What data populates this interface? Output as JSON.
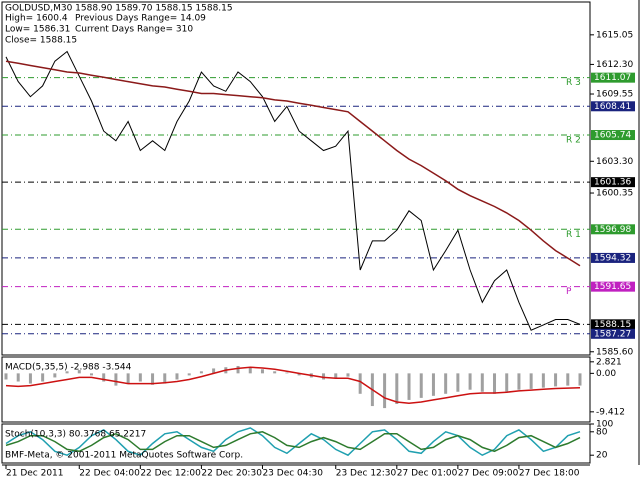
{
  "chart_data": [
    {
      "type": "line",
      "title": "GOLDUSD,M30  1588.90 1589.70 1588.15 1588.15",
      "info": [
        "High= 1600.4",
        "Previous Days Range= 14.09",
        "Low= 1586.31",
        "Current Days Range= 310",
        "Close= 1588.15"
      ],
      "categories": [
        "21 Dec 2011",
        null,
        null,
        null,
        null,
        null,
        "22 Dec 04:00",
        null,
        null,
        null,
        null,
        "22 Dec 12:00",
        null,
        null,
        null,
        null,
        "22 Dec 20:30",
        null,
        null,
        null,
        null,
        "23 Dec 04:30",
        null,
        null,
        null,
        null,
        null,
        "23 Dec 12:30",
        null,
        null,
        null,
        null,
        "27 Dec 01:00",
        null,
        null,
        null,
        null,
        "27 Dec 09:00",
        null,
        null,
        null,
        null,
        "27 Dec 18:00",
        null,
        null,
        null,
        null,
        null
      ],
      "series": [
        {
          "color": "#000000",
          "values": [
            1613.0,
            1610.7,
            1609.3,
            1610.3,
            1612.6,
            1613.5,
            1611.2,
            1608.9,
            1606.1,
            1605.2,
            1607.0,
            1604.3,
            1605.2,
            1604.3,
            1607.0,
            1608.9,
            1611.6,
            1610.3,
            1609.8,
            1611.6,
            1610.7,
            1609.3,
            1607.0,
            1608.4,
            1606.1,
            1605.2,
            1604.3,
            1604.7,
            1606.1,
            1593.2,
            1595.9,
            1595.9,
            1596.9,
            1598.7,
            1597.8,
            1593.2,
            1595.0,
            1596.9,
            1593.2,
            1590.2,
            1592.2,
            1593.2,
            1590.2,
            1587.6,
            1588.1,
            1588.6,
            1588.6,
            1588.15
          ]
        },
        {
          "color": "#8b1a1a",
          "values": [
            1612.6,
            1612.4,
            1612.2,
            1612.0,
            1611.8,
            1611.6,
            1611.5,
            1611.3,
            1611.1,
            1610.9,
            1610.7,
            1610.5,
            1610.3,
            1610.2,
            1610.0,
            1609.8,
            1609.6,
            1609.6,
            1609.5,
            1609.4,
            1609.3,
            1609.2,
            1609.0,
            1608.9,
            1608.7,
            1608.5,
            1608.3,
            1608.1,
            1607.9,
            1607.0,
            1606.1,
            1605.2,
            1604.3,
            1603.5,
            1602.9,
            1602.2,
            1601.5,
            1600.7,
            1600.1,
            1599.6,
            1599.1,
            1598.5,
            1597.8,
            1596.9,
            1595.9,
            1595.0,
            1594.3,
            1593.6
          ]
        }
      ],
      "levels": [
        {
          "value": 1611.07,
          "color": "#2e9b2e",
          "name": "R 3"
        },
        {
          "value": 1608.41,
          "color": "#1a237e"
        },
        {
          "value": 1605.74,
          "color": "#2e9b2e",
          "name": "R 2"
        },
        {
          "value": 1601.36,
          "color": "#000000"
        },
        {
          "value": 1596.98,
          "color": "#2e9b2e",
          "name": "R 1"
        },
        {
          "value": 1594.32,
          "color": "#1a237e"
        },
        {
          "value": 1591.65,
          "color": "#c020c0",
          "name": "P"
        },
        {
          "value": 1588.15,
          "color": "#000000"
        },
        {
          "value": 1587.27,
          "color": "#1a237e"
        }
      ],
      "ylim": [
        1585.3,
        1618.1
      ],
      "yticks": [
        1615.05,
        {
          "value": 1612.3,
          "label": "1612.30"
        },
        1609.55,
        {
          "value": 1603.3,
          "label": "1603.30"
        },
        1600.35,
        {
          "value": 1585.6,
          "label": "1585.60"
        }
      ]
    },
    {
      "type": "macd",
      "title": "MACD(5,35,5) -2.988 -3.544",
      "series": [
        {
          "color": "#a0a0a0",
          "values": [
            -1.5,
            -2,
            -2.5,
            -2,
            -1,
            0.5,
            0.8,
            -0.5,
            -2,
            -3,
            -2.5,
            -2,
            -2.8,
            -2.5,
            -1.5,
            -0.5,
            0.5,
            1.2,
            1.5,
            1.8,
            1.5,
            1,
            0.5,
            0.2,
            -0.5,
            -1,
            -1.5,
            -1.2,
            -0.8,
            -5,
            -8,
            -8.5,
            -7.5,
            -6.5,
            -6,
            -5.5,
            -5,
            -4.5,
            -4,
            -4.5,
            -5,
            -4.5,
            -4,
            -3.8,
            -3.5,
            -3.2,
            -3,
            -2.988
          ]
        },
        {
          "color": "#cc1111",
          "values": [
            -3,
            -3.2,
            -3,
            -2.5,
            -2,
            -1.5,
            -1,
            -1,
            -1.5,
            -2,
            -2.5,
            -2.5,
            -2.5,
            -2.3,
            -2,
            -1.5,
            -0.8,
            0,
            0.8,
            1.2,
            1.5,
            1.3,
            1,
            0.5,
            0,
            -0.5,
            -1,
            -1.2,
            -1.2,
            -2,
            -4,
            -6,
            -7,
            -7.3,
            -7,
            -6.5,
            -6,
            -5.5,
            -5,
            -4.8,
            -4.8,
            -4.6,
            -4.3,
            -4.1,
            -3.9,
            -3.7,
            -3.6,
            -3.544
          ]
        }
      ],
      "ylim": [
        -11.9,
        4.0
      ],
      "yticks": [
        2.821,
        {
          "value": 0,
          "label": "0.00"
        },
        -9.412
      ]
    },
    {
      "type": "stoch",
      "title": "Stoch(10,3,3) 80.3768 65.2217",
      "series": [
        {
          "color": "#20a0b0",
          "values": [
            50,
            70,
            80,
            60,
            30,
            20,
            40,
            70,
            85,
            60,
            30,
            20,
            50,
            75,
            80,
            60,
            40,
            30,
            60,
            80,
            90,
            70,
            40,
            25,
            50,
            75,
            60,
            35,
            20,
            50,
            80,
            85,
            60,
            30,
            25,
            55,
            80,
            70,
            40,
            20,
            35,
            70,
            85,
            60,
            30,
            40,
            70,
            80.3768
          ]
        },
        {
          "color": "#2e7b2e",
          "values": [
            45,
            55,
            70,
            70,
            55,
            35,
            30,
            45,
            65,
            75,
            60,
            35,
            35,
            55,
            70,
            70,
            55,
            40,
            45,
            60,
            75,
            80,
            65,
            45,
            40,
            55,
            65,
            55,
            40,
            35,
            55,
            75,
            75,
            55,
            35,
            40,
            60,
            70,
            60,
            40,
            30,
            45,
            65,
            70,
            55,
            40,
            50,
            65.2217
          ]
        }
      ],
      "ylim": [
        0,
        100
      ],
      "yticks": [
        100,
        80,
        20
      ]
    }
  ],
  "footer": "BMF-Meta, © 2001-2011 MetaQuotes Software Corp."
}
